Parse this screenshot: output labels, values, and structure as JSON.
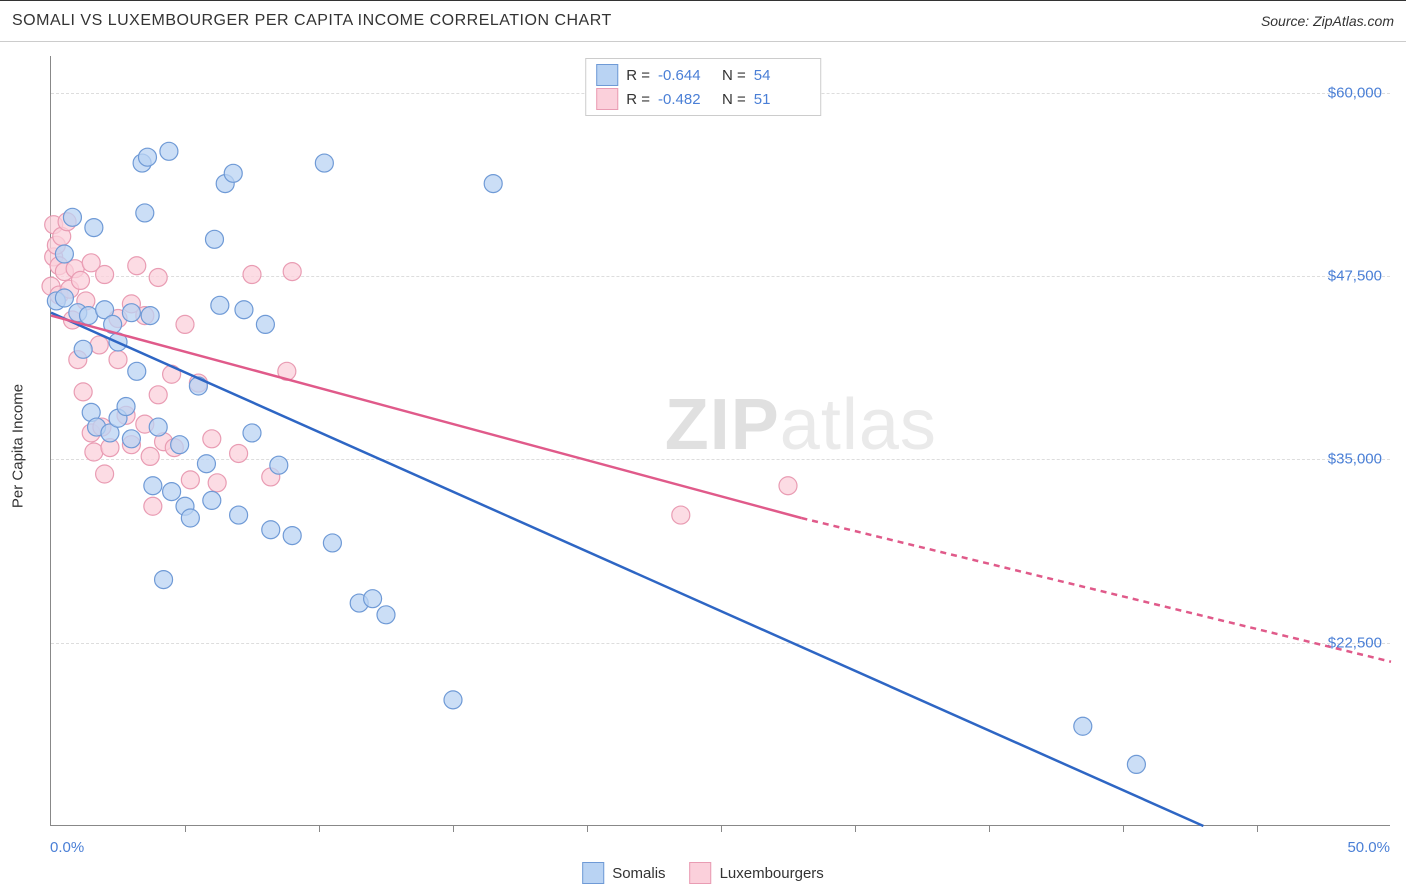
{
  "header": {
    "title": "SOMALI VS LUXEMBOURGER PER CAPITA INCOME CORRELATION CHART",
    "source_prefix": "Source: ",
    "source_name": "ZipAtlas.com"
  },
  "watermark": {
    "bold": "ZIP",
    "light": "atlas"
  },
  "axes": {
    "y_title": "Per Capita Income",
    "x_min_label": "0.0%",
    "x_max_label": "50.0%",
    "x_min": 0.0,
    "x_max": 50.0,
    "y_min": 10000,
    "y_max": 62500,
    "y_ticks": [
      22500,
      35000,
      47500,
      60000
    ],
    "y_tick_labels": [
      "$22,500",
      "$35,000",
      "$47,500",
      "$60,000"
    ],
    "x_ticks": [
      5,
      10,
      15,
      20,
      25,
      30,
      35,
      40,
      45
    ],
    "grid_color": "#dddddd"
  },
  "series": {
    "somalis": {
      "label": "Somalis",
      "fill": "#b9d3f3",
      "stroke": "#6f9ad6",
      "line_color": "#2e66c4",
      "r_value": "-0.644",
      "n_value": "54",
      "trend": {
        "x1": 0.0,
        "y1": 45000,
        "x2": 43.0,
        "y2": 10000
      },
      "points": [
        [
          0.2,
          45800
        ],
        [
          0.5,
          49000
        ],
        [
          0.5,
          46000
        ],
        [
          0.8,
          51500
        ],
        [
          1.0,
          45000
        ],
        [
          1.2,
          42500
        ],
        [
          1.4,
          44800
        ],
        [
          1.5,
          38200
        ],
        [
          1.6,
          50800
        ],
        [
          1.7,
          37200
        ],
        [
          2.0,
          45200
        ],
        [
          2.2,
          36800
        ],
        [
          2.3,
          44200
        ],
        [
          2.5,
          43000
        ],
        [
          2.5,
          37800
        ],
        [
          2.8,
          38600
        ],
        [
          3.0,
          45000
        ],
        [
          3.0,
          36400
        ],
        [
          3.2,
          41000
        ],
        [
          3.4,
          55200
        ],
        [
          3.5,
          51800
        ],
        [
          3.6,
          55600
        ],
        [
          3.7,
          44800
        ],
        [
          3.8,
          33200
        ],
        [
          4.0,
          37200
        ],
        [
          4.2,
          26800
        ],
        [
          4.4,
          56000
        ],
        [
          4.5,
          32800
        ],
        [
          4.8,
          36000
        ],
        [
          5.0,
          31800
        ],
        [
          5.2,
          31000
        ],
        [
          5.5,
          40000
        ],
        [
          5.8,
          34700
        ],
        [
          6.0,
          32200
        ],
        [
          6.1,
          50000
        ],
        [
          6.3,
          45500
        ],
        [
          6.5,
          53800
        ],
        [
          6.8,
          54500
        ],
        [
          7.0,
          31200
        ],
        [
          7.2,
          45200
        ],
        [
          7.5,
          36800
        ],
        [
          8.0,
          44200
        ],
        [
          8.2,
          30200
        ],
        [
          8.5,
          34600
        ],
        [
          9.0,
          29800
        ],
        [
          10.2,
          55200
        ],
        [
          10.5,
          29300
        ],
        [
          11.5,
          25200
        ],
        [
          12.0,
          25500
        ],
        [
          12.5,
          24400
        ],
        [
          15.0,
          18600
        ],
        [
          16.5,
          53800
        ],
        [
          38.5,
          16800
        ],
        [
          40.5,
          14200
        ]
      ]
    },
    "luxembourgers": {
      "label": "Luxembourgers",
      "fill": "#fbd0db",
      "stroke": "#e99cb3",
      "line_color": "#e05a8a",
      "r_value": "-0.482",
      "n_value": "51",
      "trend_solid": {
        "x1": 0.0,
        "y1": 44800,
        "x2": 28.0,
        "y2": 31000
      },
      "trend_dashed": {
        "x1": 28.0,
        "y1": 31000,
        "x2": 50.0,
        "y2": 21200
      },
      "points": [
        [
          0.0,
          46800
        ],
        [
          0.1,
          48800
        ],
        [
          0.1,
          51000
        ],
        [
          0.2,
          49600
        ],
        [
          0.3,
          48200
        ],
        [
          0.3,
          46200
        ],
        [
          0.4,
          50200
        ],
        [
          0.5,
          47800
        ],
        [
          0.6,
          51200
        ],
        [
          0.7,
          46600
        ],
        [
          0.8,
          44500
        ],
        [
          0.9,
          48000
        ],
        [
          1.0,
          41800
        ],
        [
          1.1,
          47200
        ],
        [
          1.2,
          39600
        ],
        [
          1.3,
          45800
        ],
        [
          1.5,
          48400
        ],
        [
          1.5,
          36800
        ],
        [
          1.6,
          35500
        ],
        [
          1.8,
          42800
        ],
        [
          1.9,
          37200
        ],
        [
          2.0,
          47600
        ],
        [
          2.0,
          34000
        ],
        [
          2.2,
          35800
        ],
        [
          2.5,
          44600
        ],
        [
          2.5,
          41800
        ],
        [
          2.8,
          38000
        ],
        [
          3.0,
          45600
        ],
        [
          3.0,
          36000
        ],
        [
          3.2,
          48200
        ],
        [
          3.5,
          44800
        ],
        [
          3.5,
          37400
        ],
        [
          3.7,
          35200
        ],
        [
          3.8,
          31800
        ],
        [
          4.0,
          47400
        ],
        [
          4.0,
          39400
        ],
        [
          4.2,
          36200
        ],
        [
          4.5,
          40800
        ],
        [
          4.6,
          35800
        ],
        [
          5.0,
          44200
        ],
        [
          5.2,
          33600
        ],
        [
          5.5,
          40200
        ],
        [
          6.0,
          36400
        ],
        [
          6.2,
          33400
        ],
        [
          7.0,
          35400
        ],
        [
          7.5,
          47600
        ],
        [
          8.2,
          33800
        ],
        [
          8.8,
          41000
        ],
        [
          9.0,
          47800
        ],
        [
          23.5,
          31200
        ],
        [
          27.5,
          33200
        ]
      ]
    }
  },
  "stats_legend": {
    "r_label": "R =",
    "n_label": "N ="
  },
  "styling": {
    "marker_radius": 9,
    "marker_opacity": 0.75,
    "line_width_solid": 2.5,
    "background": "#ffffff",
    "axis_color": "#888888",
    "tick_label_color": "#4a7fd6",
    "title_color": "#333333"
  }
}
